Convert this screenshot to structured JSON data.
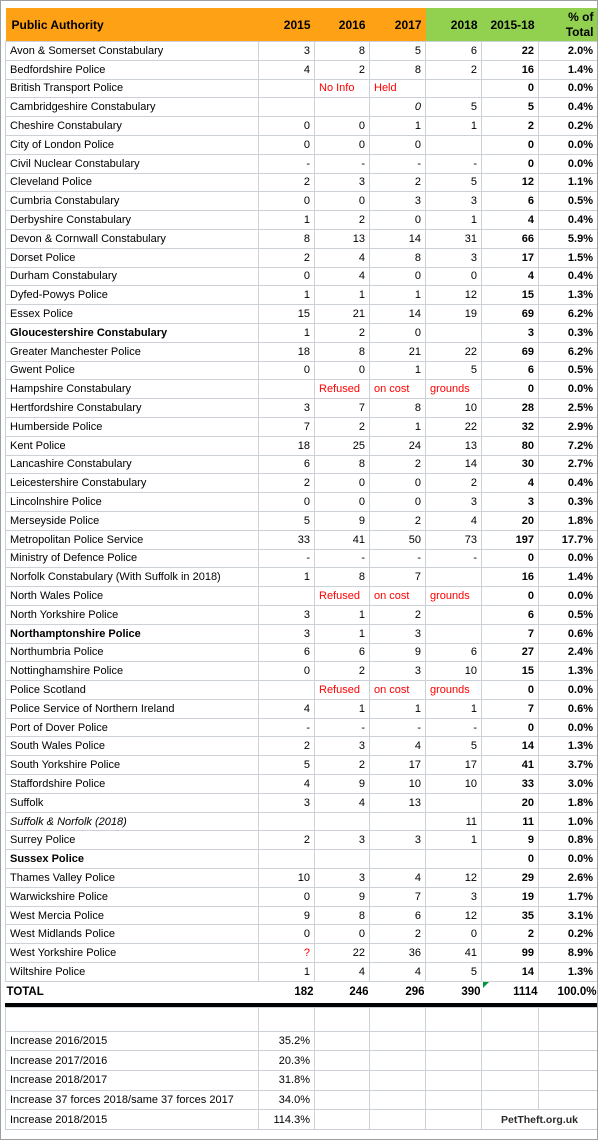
{
  "colors": {
    "header_orange": "#FFA115",
    "header_green": "#92D050",
    "red_text": "#FF0000",
    "flag_green": "#009A3E",
    "gridline": "#CBD1D6"
  },
  "table": {
    "columns": [
      {
        "label": "Public Authority"
      },
      {
        "label": "2015"
      },
      {
        "label": "2016"
      },
      {
        "label": "2017"
      },
      {
        "label": "2018"
      },
      {
        "label": "2015-18"
      },
      {
        "label": "% of Total"
      }
    ],
    "rows": [
      {
        "name": "Avon & Somerset Constabulary",
        "cells": [
          "3",
          "8",
          "5",
          "6",
          "22",
          "2.0%"
        ]
      },
      {
        "name": "Bedfordshire Police",
        "cells": [
          "4",
          "2",
          "8",
          "2",
          "16",
          "1.4%"
        ]
      },
      {
        "name": "British Transport Police",
        "cells": [
          "",
          "No Info",
          "Held",
          "",
          "0",
          "0.0%"
        ],
        "styles": [
          "",
          "red left",
          "red left",
          "",
          "",
          ""
        ]
      },
      {
        "name": "Cambridgeshire Constabulary",
        "cells": [
          "",
          "",
          "0",
          "5",
          "5",
          "0.4%"
        ],
        "styles": [
          "",
          "",
          "italic",
          "",
          "",
          ""
        ]
      },
      {
        "name": "Cheshire Constabulary",
        "cells": [
          "0",
          "0",
          "1",
          "1",
          "2",
          "0.2%"
        ]
      },
      {
        "name": "City of London Police",
        "cells": [
          "0",
          "0",
          "0",
          "",
          "0",
          "0.0%"
        ]
      },
      {
        "name": "Civil Nuclear Constabulary",
        "cells": [
          "-",
          "-",
          "-",
          "-",
          "0",
          "0.0%"
        ]
      },
      {
        "name": "Cleveland Police",
        "cells": [
          "2",
          "3",
          "2",
          "5",
          "12",
          "1.1%"
        ]
      },
      {
        "name": "Cumbria Constabulary",
        "cells": [
          "0",
          "0",
          "3",
          "3",
          "6",
          "0.5%"
        ]
      },
      {
        "name": "Derbyshire Constabulary",
        "cells": [
          "1",
          "2",
          "0",
          "1",
          "4",
          "0.4%"
        ]
      },
      {
        "name": "Devon & Cornwall Constabulary",
        "cells": [
          "8",
          "13",
          "14",
          "31",
          "66",
          "5.9%"
        ]
      },
      {
        "name": "Dorset Police",
        "cells": [
          "2",
          "4",
          "8",
          "3",
          "17",
          "1.5%"
        ]
      },
      {
        "name": "Durham Constabulary",
        "cells": [
          "0",
          "4",
          "0",
          "0",
          "4",
          "0.4%"
        ]
      },
      {
        "name": "Dyfed-Powys Police",
        "cells": [
          "1",
          "1",
          "1",
          "12",
          "15",
          "1.3%"
        ]
      },
      {
        "name": "Essex Police",
        "cells": [
          "15",
          "21",
          "14",
          "19",
          "69",
          "6.2%"
        ]
      },
      {
        "name": "Gloucestershire Constabulary",
        "style": "bold",
        "cells": [
          "1",
          "2",
          "0",
          "",
          "3",
          "0.3%"
        ]
      },
      {
        "name": "Greater Manchester Police",
        "cells": [
          "18",
          "8",
          "21",
          "22",
          "69",
          "6.2%"
        ]
      },
      {
        "name": "Gwent Police",
        "cells": [
          "0",
          "0",
          "1",
          "5",
          "6",
          "0.5%"
        ]
      },
      {
        "name": "Hampshire Constabulary",
        "cells": [
          "",
          "Refused",
          "on cost",
          "grounds",
          "0",
          "0.0%"
        ],
        "styles": [
          "",
          "red left",
          "red left",
          "red left",
          "",
          ""
        ]
      },
      {
        "name": "Hertfordshire Constabulary",
        "cells": [
          "3",
          "7",
          "8",
          "10",
          "28",
          "2.5%"
        ]
      },
      {
        "name": "Humberside Police",
        "cells": [
          "7",
          "2",
          "1",
          "22",
          "32",
          "2.9%"
        ]
      },
      {
        "name": "Kent Police",
        "cells": [
          "18",
          "25",
          "24",
          "13",
          "80",
          "7.2%"
        ]
      },
      {
        "name": "Lancashire Constabulary",
        "cells": [
          "6",
          "8",
          "2",
          "14",
          "30",
          "2.7%"
        ]
      },
      {
        "name": "Leicestershire Constabulary",
        "cells": [
          "2",
          "0",
          "0",
          "2",
          "4",
          "0.4%"
        ]
      },
      {
        "name": "Lincolnshire Police",
        "cells": [
          "0",
          "0",
          "0",
          "3",
          "3",
          "0.3%"
        ]
      },
      {
        "name": "Merseyside Police",
        "cells": [
          "5",
          "9",
          "2",
          "4",
          "20",
          "1.8%"
        ]
      },
      {
        "name": "Metropolitan Police Service",
        "cells": [
          "33",
          "41",
          "50",
          "73",
          "197",
          "17.7%"
        ]
      },
      {
        "name": "Ministry of Defence Police",
        "cells": [
          "-",
          "-",
          "-",
          "-",
          "0",
          "0.0%"
        ]
      },
      {
        "name": "Norfolk Constabulary (With Suffolk in 2018)",
        "cells": [
          "1",
          "8",
          "7",
          "",
          "16",
          "1.4%"
        ]
      },
      {
        "name": "North Wales Police",
        "cells": [
          "",
          "Refused",
          "on cost",
          "grounds",
          "0",
          "0.0%"
        ],
        "styles": [
          "",
          "red left",
          "red left",
          "red left",
          "",
          ""
        ]
      },
      {
        "name": "North Yorkshire Police",
        "cells": [
          "3",
          "1",
          "2",
          "",
          "6",
          "0.5%"
        ]
      },
      {
        "name": "Northamptonshire Police",
        "style": "bold",
        "cells": [
          "3",
          "1",
          "3",
          "",
          "7",
          "0.6%"
        ]
      },
      {
        "name": "Northumbria Police",
        "cells": [
          "6",
          "6",
          "9",
          "6",
          "27",
          "2.4%"
        ]
      },
      {
        "name": "Nottinghamshire Police",
        "cells": [
          "0",
          "2",
          "3",
          "10",
          "15",
          "1.3%"
        ]
      },
      {
        "name": "Police Scotland",
        "cells": [
          "",
          "Refused",
          "on cost",
          "grounds",
          "0",
          "0.0%"
        ],
        "styles": [
          "",
          "red left",
          "red left",
          "red left",
          "",
          ""
        ]
      },
      {
        "name": "Police Service of Northern Ireland",
        "cells": [
          "4",
          "1",
          "1",
          "1",
          "7",
          "0.6%"
        ]
      },
      {
        "name": "Port of Dover Police",
        "cells": [
          "-",
          "-",
          "-",
          "-",
          "0",
          "0.0%"
        ]
      },
      {
        "name": "South Wales Police",
        "cells": [
          "2",
          "3",
          "4",
          "5",
          "14",
          "1.3%"
        ]
      },
      {
        "name": "South Yorkshire Police",
        "cells": [
          "5",
          "2",
          "17",
          "17",
          "41",
          "3.7%"
        ]
      },
      {
        "name": "Staffordshire Police",
        "cells": [
          "4",
          "9",
          "10",
          "10",
          "33",
          "3.0%"
        ]
      },
      {
        "name": "Suffolk",
        "cells": [
          "3",
          "4",
          "13",
          "",
          "20",
          "1.8%"
        ]
      },
      {
        "name": "Suffolk & Norfolk (2018)",
        "style": "italic",
        "cells": [
          "",
          "",
          "",
          "11",
          "11",
          "1.0%"
        ]
      },
      {
        "name": "Surrey Police",
        "cells": [
          "2",
          "3",
          "3",
          "1",
          "9",
          "0.8%"
        ]
      },
      {
        "name": "Sussex Police",
        "style": "bold",
        "cells": [
          "",
          "",
          "",
          "",
          "0",
          "0.0%"
        ]
      },
      {
        "name": "Thames Valley Police",
        "cells": [
          "10",
          "3",
          "4",
          "12",
          "29",
          "2.6%"
        ]
      },
      {
        "name": "Warwickshire Police",
        "cells": [
          "0",
          "9",
          "7",
          "3",
          "19",
          "1.7%"
        ]
      },
      {
        "name": "West Mercia Police",
        "cells": [
          "9",
          "8",
          "6",
          "12",
          "35",
          "3.1%"
        ]
      },
      {
        "name": "West Midlands Police",
        "cells": [
          "0",
          "0",
          "2",
          "0",
          "2",
          "0.2%"
        ]
      },
      {
        "name": "West Yorkshire Police",
        "cells": [
          "?",
          "22",
          "36",
          "41",
          "99",
          "8.9%"
        ],
        "styles": [
          "red",
          "",
          "",
          "",
          "",
          ""
        ]
      },
      {
        "name": "Wiltshire Police",
        "cells": [
          "1",
          "4",
          "4",
          "5",
          "14",
          "1.3%"
        ]
      }
    ],
    "total_row": {
      "name": "TOTAL",
      "cells": [
        "182",
        "246",
        "296",
        "390",
        "1114",
        "100.0%"
      ],
      "flag_cell_index": 4
    }
  },
  "footer": {
    "increase_rows": [
      {
        "label": "Increase 2016/2015",
        "value": "35.2%"
      },
      {
        "label": "Increase 2017/2016",
        "value": "20.3%"
      },
      {
        "label": "Increase 2018/2017",
        "value": "31.8%"
      },
      {
        "label": "Increase 37 forces 2018/same 37 forces 2017",
        "value": "34.0%"
      },
      {
        "label": "Increase 2018/2015",
        "value": "114.3%",
        "note": "PetTheft.org.uk"
      }
    ]
  }
}
